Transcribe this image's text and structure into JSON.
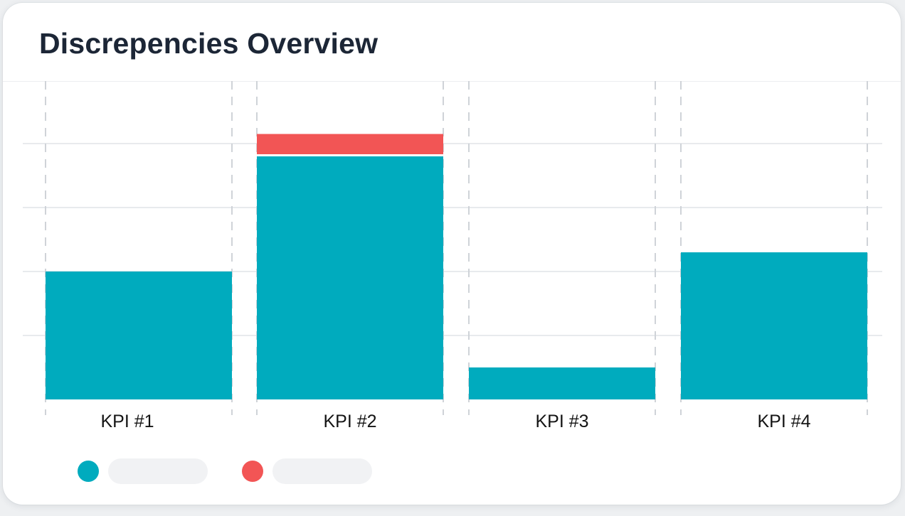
{
  "card": {
    "title": "Discrepencies Overview"
  },
  "colors": {
    "primary_series": "#00abbe",
    "discrepancy_series": "#f25555",
    "gridline": "#e8eaed",
    "divider": "#cfd3d8",
    "title": "#1c2636"
  },
  "chart_data": {
    "type": "bar",
    "stacked": true,
    "categories": [
      "KPI #1",
      "KPI #2",
      "KPI #3",
      "KPI #4"
    ],
    "series": [
      {
        "values": [
          2.0,
          3.8,
          0.5,
          2.3
        ],
        "color": "#00abbe"
      },
      {
        "values": [
          0,
          0.35,
          0,
          0
        ],
        "color": "#f25555"
      }
    ],
    "ylim": [
      0,
      4.5
    ],
    "ygrid_step": 1,
    "y_axis_labels_shown": false,
    "horizontal_grid": true,
    "vertical_dashed_dividers": true,
    "legend": {
      "placement": "bottom-left",
      "labels_shown": false
    }
  }
}
